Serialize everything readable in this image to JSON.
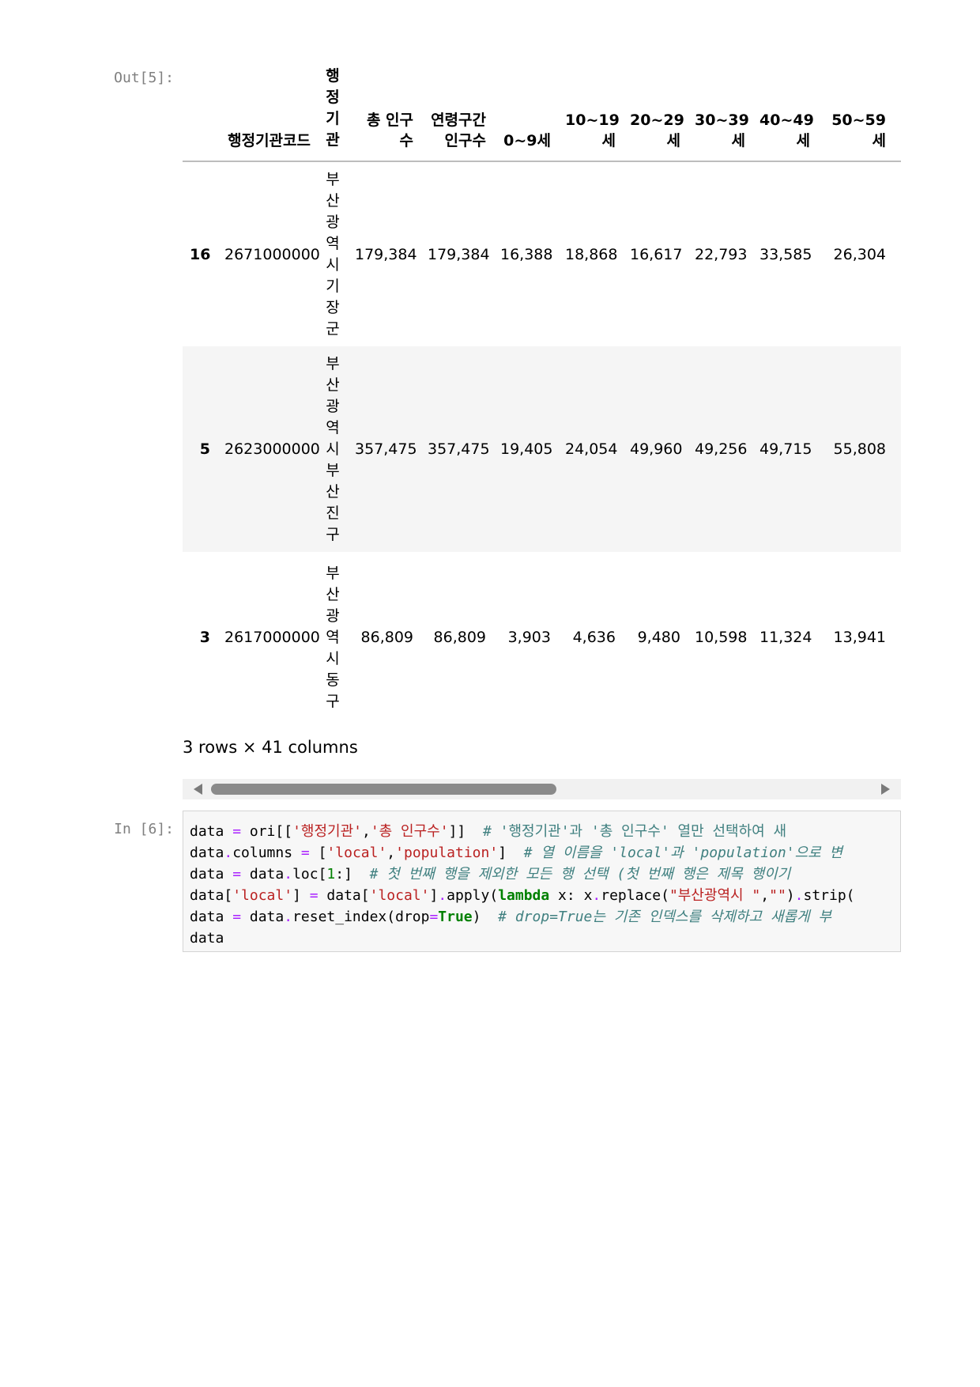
{
  "output_cell": {
    "prompt": "Out[5]:",
    "columns": [
      "행정기관코드",
      "행정기관",
      "총 인구수",
      "연령구간인구수",
      "0~9세",
      "10~19세",
      "20~29세",
      "30~39세",
      "40~49세",
      "50~59세"
    ],
    "rows": [
      {
        "index": "16",
        "values": [
          "2671000000",
          "부산광역시 기장군",
          "179,384",
          "179,384",
          "16,388",
          "18,868",
          "16,617",
          "22,793",
          "33,585",
          "26,304"
        ]
      },
      {
        "index": "5",
        "values": [
          "2623000000",
          "부산광역시 부산진구",
          "357,475",
          "357,475",
          "19,405",
          "24,054",
          "49,960",
          "49,256",
          "49,715",
          "55,808"
        ]
      },
      {
        "index": "3",
        "values": [
          "2617000000",
          "부산광역시 동구",
          "86,809",
          "86,809",
          "3,903",
          "4,636",
          "9,480",
          "10,598",
          "11,324",
          "13,941"
        ]
      }
    ],
    "summary": "3 rows × 41 columns",
    "scroll_position": 0.0
  },
  "input_cell": {
    "prompt": "In [6]:",
    "lines": [
      [
        {
          "t": "data ",
          "c": ""
        },
        {
          "t": "=",
          "c": "op"
        },
        {
          "t": " ori[[",
          "c": ""
        },
        {
          "t": "'행정기관'",
          "c": "str"
        },
        {
          "t": ",",
          "c": ""
        },
        {
          "t": "'총 인구수'",
          "c": "str"
        },
        {
          "t": "]]  ",
          "c": ""
        },
        {
          "t": "# '행정기관'과 '총 인구수' 열만 선택하여 새",
          "c": "cmk"
        }
      ],
      [
        {
          "t": "data",
          "c": ""
        },
        {
          "t": ".",
          "c": "op"
        },
        {
          "t": "columns ",
          "c": ""
        },
        {
          "t": "=",
          "c": "op"
        },
        {
          "t": " [",
          "c": ""
        },
        {
          "t": "'local'",
          "c": "str"
        },
        {
          "t": ",",
          "c": ""
        },
        {
          "t": "'population'",
          "c": "str"
        },
        {
          "t": "]  ",
          "c": ""
        },
        {
          "t": "# 열 이름을 'local'과 'population'으로 변",
          "c": "cm"
        }
      ],
      [
        {
          "t": "data ",
          "c": ""
        },
        {
          "t": "=",
          "c": "op"
        },
        {
          "t": " data",
          "c": ""
        },
        {
          "t": ".",
          "c": "op"
        },
        {
          "t": "loc[",
          "c": ""
        },
        {
          "t": "1",
          "c": "num"
        },
        {
          "t": ":]  ",
          "c": ""
        },
        {
          "t": "# 첫 번째 행을 제외한 모든 행 선택 (첫 번째 행은 제목 행이기",
          "c": "cm"
        }
      ],
      [
        {
          "t": "data[",
          "c": ""
        },
        {
          "t": "'local'",
          "c": "str"
        },
        {
          "t": "] ",
          "c": ""
        },
        {
          "t": "=",
          "c": "op"
        },
        {
          "t": " data[",
          "c": ""
        },
        {
          "t": "'local'",
          "c": "str"
        },
        {
          "t": "]",
          "c": ""
        },
        {
          "t": ".",
          "c": "op"
        },
        {
          "t": "apply(",
          "c": ""
        },
        {
          "t": "lambda",
          "c": "kw"
        },
        {
          "t": " x: x",
          "c": ""
        },
        {
          "t": ".",
          "c": "op"
        },
        {
          "t": "replace(",
          "c": ""
        },
        {
          "t": "\"부산광역시 \"",
          "c": "str"
        },
        {
          "t": ",",
          "c": ""
        },
        {
          "t": "\"\"",
          "c": "str"
        },
        {
          "t": ")",
          "c": ""
        },
        {
          "t": ".",
          "c": "op"
        },
        {
          "t": "strip(",
          "c": ""
        }
      ],
      [
        {
          "t": "data ",
          "c": ""
        },
        {
          "t": "=",
          "c": "op"
        },
        {
          "t": " data",
          "c": ""
        },
        {
          "t": ".",
          "c": "op"
        },
        {
          "t": "reset_index(drop",
          "c": ""
        },
        {
          "t": "=",
          "c": "op"
        },
        {
          "t": "True",
          "c": "kw"
        },
        {
          "t": ")  ",
          "c": ""
        },
        {
          "t": "# drop=True는 기존 인덱스를 삭제하고 새롭게 부",
          "c": "cm"
        }
      ],
      [
        {
          "t": "data",
          "c": ""
        }
      ]
    ]
  }
}
